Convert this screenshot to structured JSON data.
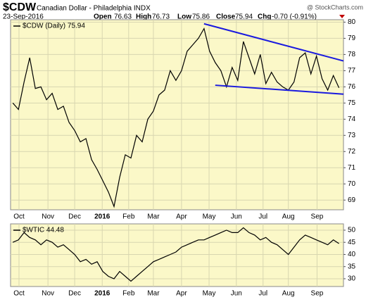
{
  "header": {
    "symbol": "$CDW",
    "name": "Canadian Dollar - Philadelphia INDX",
    "date": "23-Sep-2016",
    "source": "@ StockCharts.com",
    "quote": [
      {
        "label": "Open",
        "value": "76.63"
      },
      {
        "label": "High",
        "value": "76.73"
      },
      {
        "label": "Low",
        "value": "75.86"
      },
      {
        "label": "Close",
        "value": "75.94"
      },
      {
        "label": "Chg",
        "value": "-0.70 (-0.91%)"
      }
    ]
  },
  "chart_data": [
    {
      "type": "line",
      "background": "#fbf8c8",
      "grid": true,
      "series": [
        {
          "name": "$CDW (Daily) 75.94",
          "color": "#000000",
          "values": [
            75.0,
            74.6,
            76.3,
            77.8,
            75.9,
            76.0,
            75.2,
            75.6,
            74.6,
            74.8,
            73.8,
            73.3,
            72.6,
            72.8,
            71.5,
            70.9,
            70.2,
            69.5,
            68.6,
            70.4,
            71.8,
            71.6,
            73.0,
            72.6,
            74.0,
            74.5,
            75.5,
            75.8,
            77.0,
            76.4,
            77.0,
            78.2,
            78.6,
            79.0,
            79.6,
            78.2,
            77.5,
            77.0,
            76.0,
            77.2,
            76.4,
            78.8,
            77.8,
            76.8,
            78.0,
            76.2,
            76.9,
            76.3,
            76.0,
            75.8,
            76.3,
            77.8,
            78.1,
            76.8,
            77.9,
            76.5,
            75.8,
            76.7,
            75.94
          ]
        }
      ],
      "trendlines": [
        {
          "color": "#1a1adf",
          "x": [
            34,
            58.8
          ],
          "y": [
            79.9,
            77.6
          ]
        },
        {
          "color": "#1a1adf",
          "x": [
            36,
            58.8
          ],
          "y": [
            76.1,
            75.55
          ]
        }
      ],
      "xlim": [
        -0.4,
        58.8
      ],
      "xticks": [
        {
          "value": 1.1,
          "label": "Oct"
        },
        {
          "value": 6.25,
          "label": "Nov"
        },
        {
          "value": 11,
          "label": "Dec"
        },
        {
          "value": 15.9,
          "label": "2016",
          "bold": true
        },
        {
          "value": 20.6,
          "label": "Feb"
        },
        {
          "value": 25,
          "label": "Mar"
        },
        {
          "value": 30,
          "label": "Apr"
        },
        {
          "value": 34.9,
          "label": "May"
        },
        {
          "value": 39.75,
          "label": "Jun"
        },
        {
          "value": 44.5,
          "label": "Jul"
        },
        {
          "value": 49,
          "label": "Aug"
        },
        {
          "value": 54.1,
          "label": "Sep"
        }
      ],
      "ylim": [
        68.4,
        80.15
      ],
      "yticks": [
        69,
        70,
        71,
        72,
        73,
        74,
        75,
        76,
        77,
        78,
        79,
        80
      ]
    },
    {
      "type": "line",
      "background": "#fbf8c8",
      "grid": true,
      "series": [
        {
          "name": "$WTIC 44.48",
          "color": "#000000",
          "values": [
            45,
            46,
            49,
            47,
            46,
            44,
            46,
            45,
            43,
            44,
            42,
            40,
            37,
            38,
            36,
            37,
            33,
            31,
            30,
            33,
            31,
            29,
            31,
            33,
            35,
            37,
            38,
            39,
            40,
            41,
            43,
            44,
            45,
            46,
            46,
            47,
            48,
            49,
            50,
            49,
            49,
            51,
            49,
            48,
            46,
            47,
            45,
            44,
            42,
            40,
            43,
            46,
            48,
            47,
            46,
            45,
            44,
            46,
            44.48
          ]
        }
      ],
      "xlim": [
        -0.4,
        58.8
      ],
      "xticks": [
        {
          "value": 1.1,
          "label": "Oct"
        },
        {
          "value": 6.25,
          "label": "Nov"
        },
        {
          "value": 11,
          "label": "Dec"
        },
        {
          "value": 15.9,
          "label": "2016",
          "bold": true
        },
        {
          "value": 20.6,
          "label": "Feb"
        },
        {
          "value": 25,
          "label": "Mar"
        },
        {
          "value": 30,
          "label": "Apr"
        },
        {
          "value": 34.9,
          "label": "May"
        },
        {
          "value": 39.75,
          "label": "Jun"
        },
        {
          "value": 44.5,
          "label": "Jul"
        },
        {
          "value": 49,
          "label": "Aug"
        },
        {
          "value": 54.1,
          "label": "Sep"
        }
      ],
      "ylim": [
        26.8,
        52.6
      ],
      "yticks": [
        30,
        35,
        40,
        45,
        50
      ]
    }
  ]
}
